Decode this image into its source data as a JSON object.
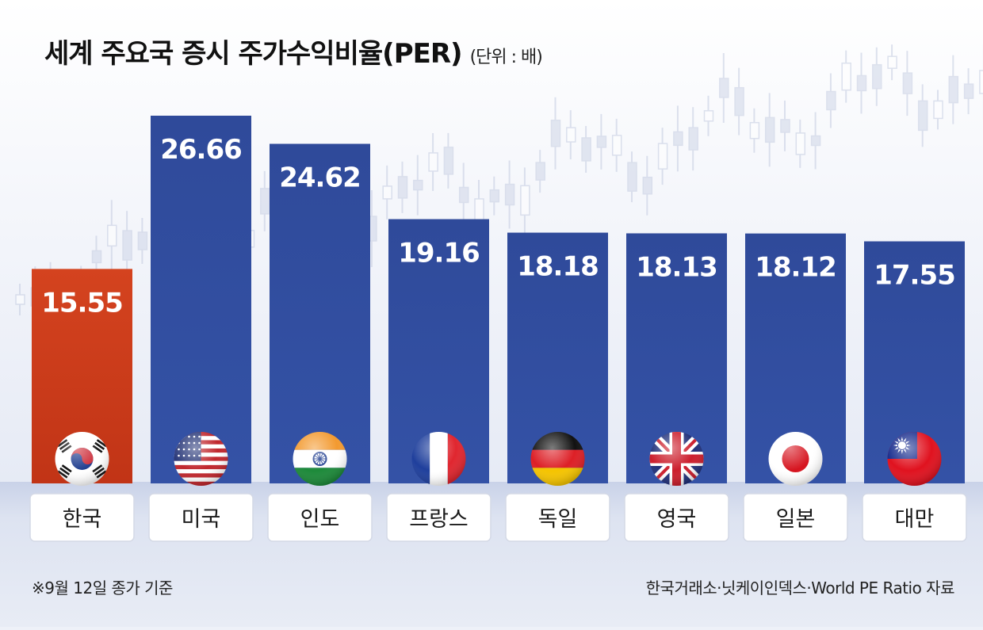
{
  "title": "세계 주요국 증시 주가수익비율(PER)",
  "unit": "(단위 : 배)",
  "note": "※9월 12일 종가 기준",
  "source": "한국거래소·닛케이인덱스·World PE Ratio 자료",
  "colors": {
    "highlight": "#c9381a",
    "bar": "#2d4795",
    "label_box": "#ffffff",
    "label_text": "#1a1a1a"
  },
  "chart_data": {
    "type": "bar",
    "categories": [
      "한국",
      "미국",
      "인도",
      "프랑스",
      "독일",
      "영국",
      "일본",
      "대만"
    ],
    "values": [
      15.55,
      26.66,
      24.62,
      19.16,
      18.18,
      18.13,
      18.12,
      17.55
    ],
    "value_labels": [
      "15.55",
      "26.66",
      "24.62",
      "19.16",
      "18.18",
      "18.13",
      "18.12",
      "17.55"
    ],
    "flags": [
      "korea-flag-icon",
      "usa-flag-icon",
      "india-flag-icon",
      "france-flag-icon",
      "germany-flag-icon",
      "uk-flag-icon",
      "japan-flag-icon",
      "taiwan-flag-icon"
    ],
    "highlight_index": 0,
    "ylim": [
      0,
      28
    ],
    "grid": false,
    "legend": "none"
  }
}
